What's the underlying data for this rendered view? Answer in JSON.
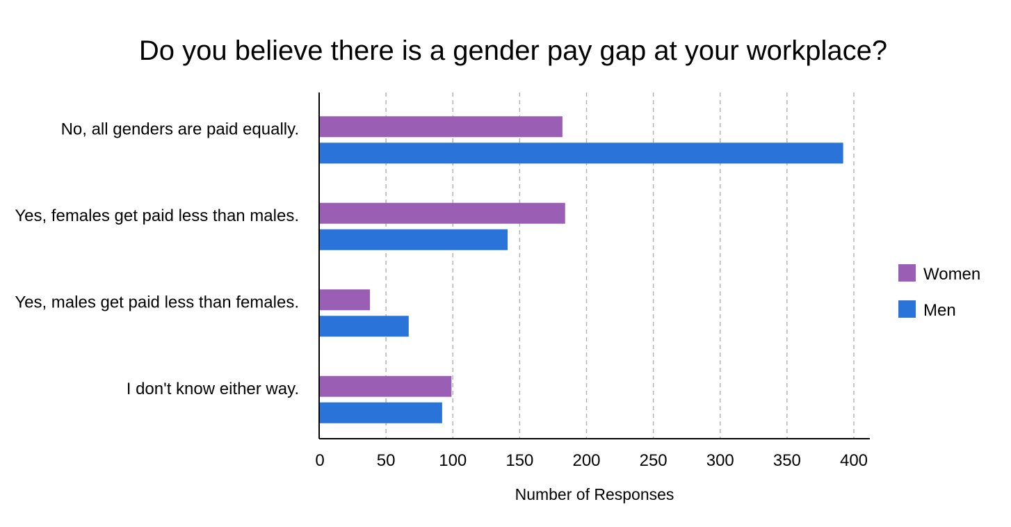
{
  "chart_data": {
    "type": "bar",
    "orientation": "horizontal",
    "title": "Do you believe there is a gender pay gap at your workplace?",
    "xlabel": "Number of Responses",
    "ylabel": "",
    "categories": [
      "No, all genders are paid equally.",
      "Yes, females get paid less than males.",
      "Yes, males get paid less than females.",
      "I don't know either way."
    ],
    "series": [
      {
        "name": "Women",
        "color": "#9a5fb4",
        "values": [
          182,
          184,
          38,
          99
        ]
      },
      {
        "name": "Men",
        "color": "#2a73d9",
        "values": [
          392,
          141,
          67,
          92
        ]
      }
    ],
    "xlim": [
      0,
      400
    ],
    "xticks": [
      "0",
      "50",
      "100",
      "150",
      "200",
      "250",
      "300",
      "350",
      "400"
    ],
    "grid": "vertical dashed",
    "legend_position": "right"
  }
}
